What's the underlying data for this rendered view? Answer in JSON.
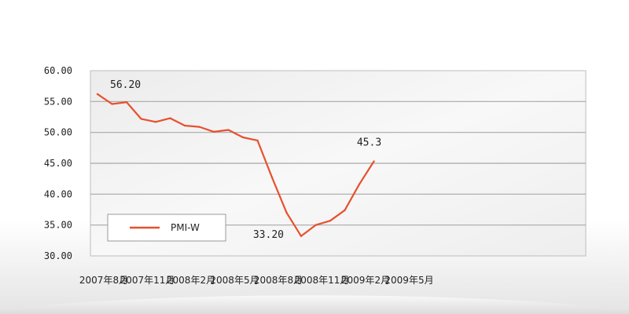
{
  "chart_data": {
    "type": "line",
    "title": "",
    "xlabel": "",
    "ylabel": "",
    "ylim": [
      30,
      60
    ],
    "y_ticks": [
      "30.00",
      "35.00",
      "40.00",
      "45.00",
      "50.00",
      "55.00",
      "60.00"
    ],
    "grid": true,
    "legend_position": "bottom-left",
    "colors": {
      "line": "#e8502e",
      "grid": "#a8a8a8",
      "plot_bg": "#f4f4f4",
      "plot_border": "#bdbdbd"
    },
    "categories": [
      "2007年8月",
      "2007年9月",
      "2007年10月",
      "2007年11月",
      "2007年12月",
      "2008年1月",
      "2008年2月",
      "2008年3月",
      "2008年4月",
      "2008年5月",
      "2008年6月",
      "2008年7月",
      "2008年8月",
      "2008年9月",
      "2008年10月",
      "2008年11月",
      "2008年12月",
      "2009年1月",
      "2009年2月",
      "2009年3月",
      "2009年4月",
      "2009年5月"
    ],
    "x_tick_labels": [
      {
        "index": 0,
        "label": "2007年8月"
      },
      {
        "index": 3,
        "label": "2007年11月"
      },
      {
        "index": 6,
        "label": "2008年2月"
      },
      {
        "index": 9,
        "label": "2008年5月"
      },
      {
        "index": 12,
        "label": "2008年8月"
      },
      {
        "index": 15,
        "label": "2008年11月"
      },
      {
        "index": 18,
        "label": "2009年2月"
      },
      {
        "index": 21,
        "label": "2009年5月"
      }
    ],
    "series": [
      {
        "name": "PMI-W",
        "values": [
          56.2,
          54.6,
          54.9,
          52.2,
          51.7,
          52.3,
          51.1,
          50.9,
          50.1,
          50.4,
          49.2,
          48.7,
          42.7,
          37.0,
          33.2,
          35.0,
          35.7,
          37.4,
          41.6,
          45.3,
          null,
          null
        ]
      }
    ],
    "annotations": [
      {
        "index": 0,
        "text": "56.20",
        "placement": "above-right"
      },
      {
        "index": 14,
        "text": "33.20",
        "placement": "below-left"
      },
      {
        "index": 19,
        "text": "45.3",
        "placement": "above"
      }
    ]
  }
}
